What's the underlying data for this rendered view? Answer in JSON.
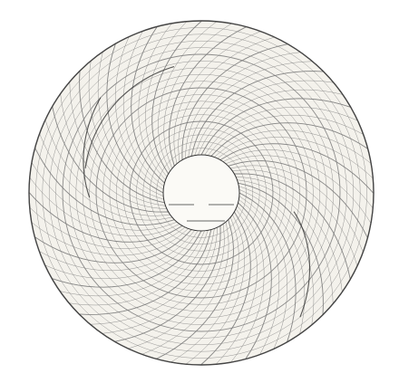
{
  "chart_data": {
    "type": "circular-recorder-chart",
    "rim_labels": [
      "",
      "",
      "",
      "",
      "",
      "",
      "",
      "",
      "",
      "",
      "",
      "",
      "",
      "",
      "",
      "",
      "",
      "",
      "",
      "",
      "",
      "",
      "",
      ""
    ],
    "hub_text": {
      "top_script": "",
      "middle_script": "",
      "left_label": "",
      "right_label": "",
      "bottom_label": ""
    },
    "colors": {
      "paper": "#f4f2ec",
      "grid": "#7a7a7a",
      "rim": "#444444",
      "hub_ring": "#333333",
      "trace": "#303030"
    }
  }
}
